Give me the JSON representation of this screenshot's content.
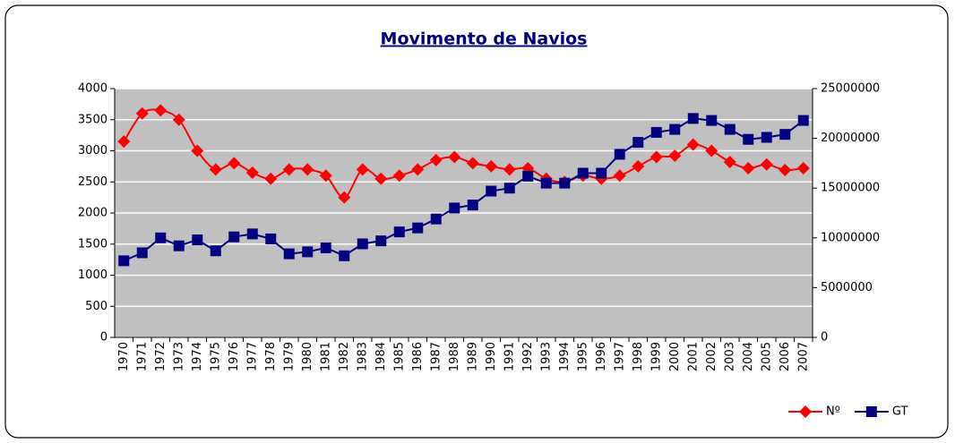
{
  "chart_data": {
    "type": "line",
    "title": "Movimento de Navios",
    "categories": [
      "1970",
      "1971",
      "1972",
      "1973",
      "1974",
      "1975",
      "1976",
      "1977",
      "1978",
      "1979",
      "1980",
      "1981",
      "1982",
      "1983",
      "1984",
      "1985",
      "1986",
      "1987",
      "1988",
      "1989",
      "1990",
      "1991",
      "1992",
      "1993",
      "1994",
      "1995",
      "1996",
      "1997",
      "1998",
      "1999",
      "2000",
      "2001",
      "2002",
      "2003",
      "2004",
      "2005",
      "2006",
      "2007"
    ],
    "series": [
      {
        "name": "Nº",
        "color": "#ff0000",
        "marker": "diamond",
        "smooth": true,
        "values": [
          3150,
          3600,
          3650,
          3500,
          3000,
          2700,
          2800,
          2650,
          2550,
          2700,
          2700,
          2600,
          2250,
          2700,
          2550,
          2600,
          2700,
          2850,
          2900,
          2800,
          2750,
          2700,
          2720,
          2550,
          2500,
          2600,
          2550,
          2600,
          2750,
          2900,
          2920,
          3100,
          3000,
          2820,
          2720,
          2780,
          2690,
          2720
        ]
      },
      {
        "name": "GT",
        "color": "#000080",
        "marker": "square",
        "smooth": false,
        "axis": "y2",
        "values": [
          7700000,
          8500000,
          10000000,
          9200000,
          9800000,
          8700000,
          10100000,
          10400000,
          9900000,
          8400000,
          8600000,
          9000000,
          8200000,
          9400000,
          9700000,
          10600000,
          11000000,
          11900000,
          13000000,
          13300000,
          14700000,
          15000000,
          16200000,
          15500000,
          15500000,
          16500000,
          16500000,
          18400000,
          19600000,
          20600000,
          20900000,
          22000000,
          21800000,
          20900000,
          19900000,
          20100000,
          20400000,
          21800000
        ]
      }
    ],
    "ylim": [
      0,
      4000
    ],
    "yticks": [
      0,
      500,
      1000,
      1500,
      2000,
      2500,
      3000,
      3500,
      4000
    ],
    "y2lim": [
      0,
      25000000
    ],
    "y2ticks": [
      0,
      5000000,
      10000000,
      15000000,
      20000000,
      25000000
    ],
    "grid": true,
    "legend": "bottom-right"
  }
}
